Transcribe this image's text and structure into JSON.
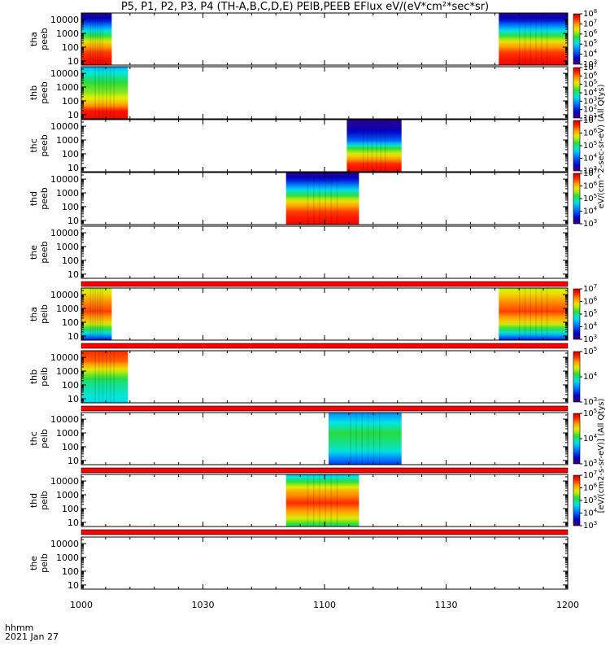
{
  "title": "P5, P1, P2, P3, P4 (TH-A,B,C,D,E) PEIB,PEEB EFlux eV/(eV*cm²*sec*sr)",
  "bottom_labels": {
    "format": "hhmm",
    "date": "2021 Jan 27"
  },
  "colorbar_labels": {
    "electron": "eV/(cm^2-sec-sr-eV) (All Qtys)",
    "ion": "[eV/(cm2-s-sr-eV)] (All Qtys)"
  },
  "chart_data": {
    "type": "heatmap",
    "xlabel": "hhmm",
    "x_ticks": [
      "1000",
      "1030",
      "1100",
      "1130",
      "1200"
    ],
    "xlim_minutes": [
      0,
      120
    ],
    "y_scale": "log",
    "y_ticks": [
      "10",
      "100",
      "1000",
      "10000"
    ],
    "ylim": [
      5,
      30000
    ],
    "panels": [
      {
        "ylabel": [
          "tha",
          "peeb"
        ],
        "intervals": [
          [
            0,
            7.5
          ],
          [
            103,
            120
          ]
        ],
        "cb_max": 8,
        "cb_min": 3,
        "profile": "electron",
        "flag_bar": false
      },
      {
        "ylabel": [
          "thb",
          "peeb"
        ],
        "intervals": [
          [
            0,
            11.5
          ]
        ],
        "cb_max": 7,
        "cb_min": 1,
        "profile": "electron_b",
        "flag_bar": false
      },
      {
        "ylabel": [
          "thc",
          "peeb"
        ],
        "intervals": [
          [
            65.5,
            79
          ]
        ],
        "cb_max": 7,
        "cb_min": 3,
        "profile": "electron_c",
        "flag_bar": false
      },
      {
        "ylabel": [
          "thd",
          "peeb"
        ],
        "intervals": [
          [
            50.5,
            68.5
          ]
        ],
        "cb_max": 7,
        "cb_min": 3,
        "profile": "electron",
        "flag_bar": false
      },
      {
        "ylabel": [
          "the",
          "peeb"
        ],
        "intervals": [],
        "cb_max": null,
        "cb_min": null,
        "profile": "none",
        "flag_bar": true
      },
      {
        "ylabel": [
          "tha",
          "peib"
        ],
        "intervals": [
          [
            0,
            7.5
          ],
          [
            103,
            120
          ]
        ],
        "cb_max": 7,
        "cb_min": 3,
        "profile": "ion",
        "flag_bar": true
      },
      {
        "ylabel": [
          "thb",
          "peib"
        ],
        "intervals": [
          [
            0,
            11.5
          ]
        ],
        "cb_max": 5,
        "cb_min": 3,
        "profile": "ion_b",
        "flag_bar": true
      },
      {
        "ylabel": [
          "thc",
          "peib"
        ],
        "intervals": [
          [
            61,
            79
          ]
        ],
        "cb_max": 5,
        "cb_min": 3,
        "profile": "ion_c",
        "flag_bar": true
      },
      {
        "ylabel": [
          "thd",
          "peib"
        ],
        "intervals": [
          [
            50.5,
            68.5
          ]
        ],
        "cb_max": 7,
        "cb_min": 3,
        "profile": "ion_d",
        "flag_bar": true
      },
      {
        "ylabel": [
          "the",
          "peib"
        ],
        "intervals": [],
        "cb_max": null,
        "cb_min": null,
        "profile": "none",
        "flag_bar": false
      }
    ]
  }
}
